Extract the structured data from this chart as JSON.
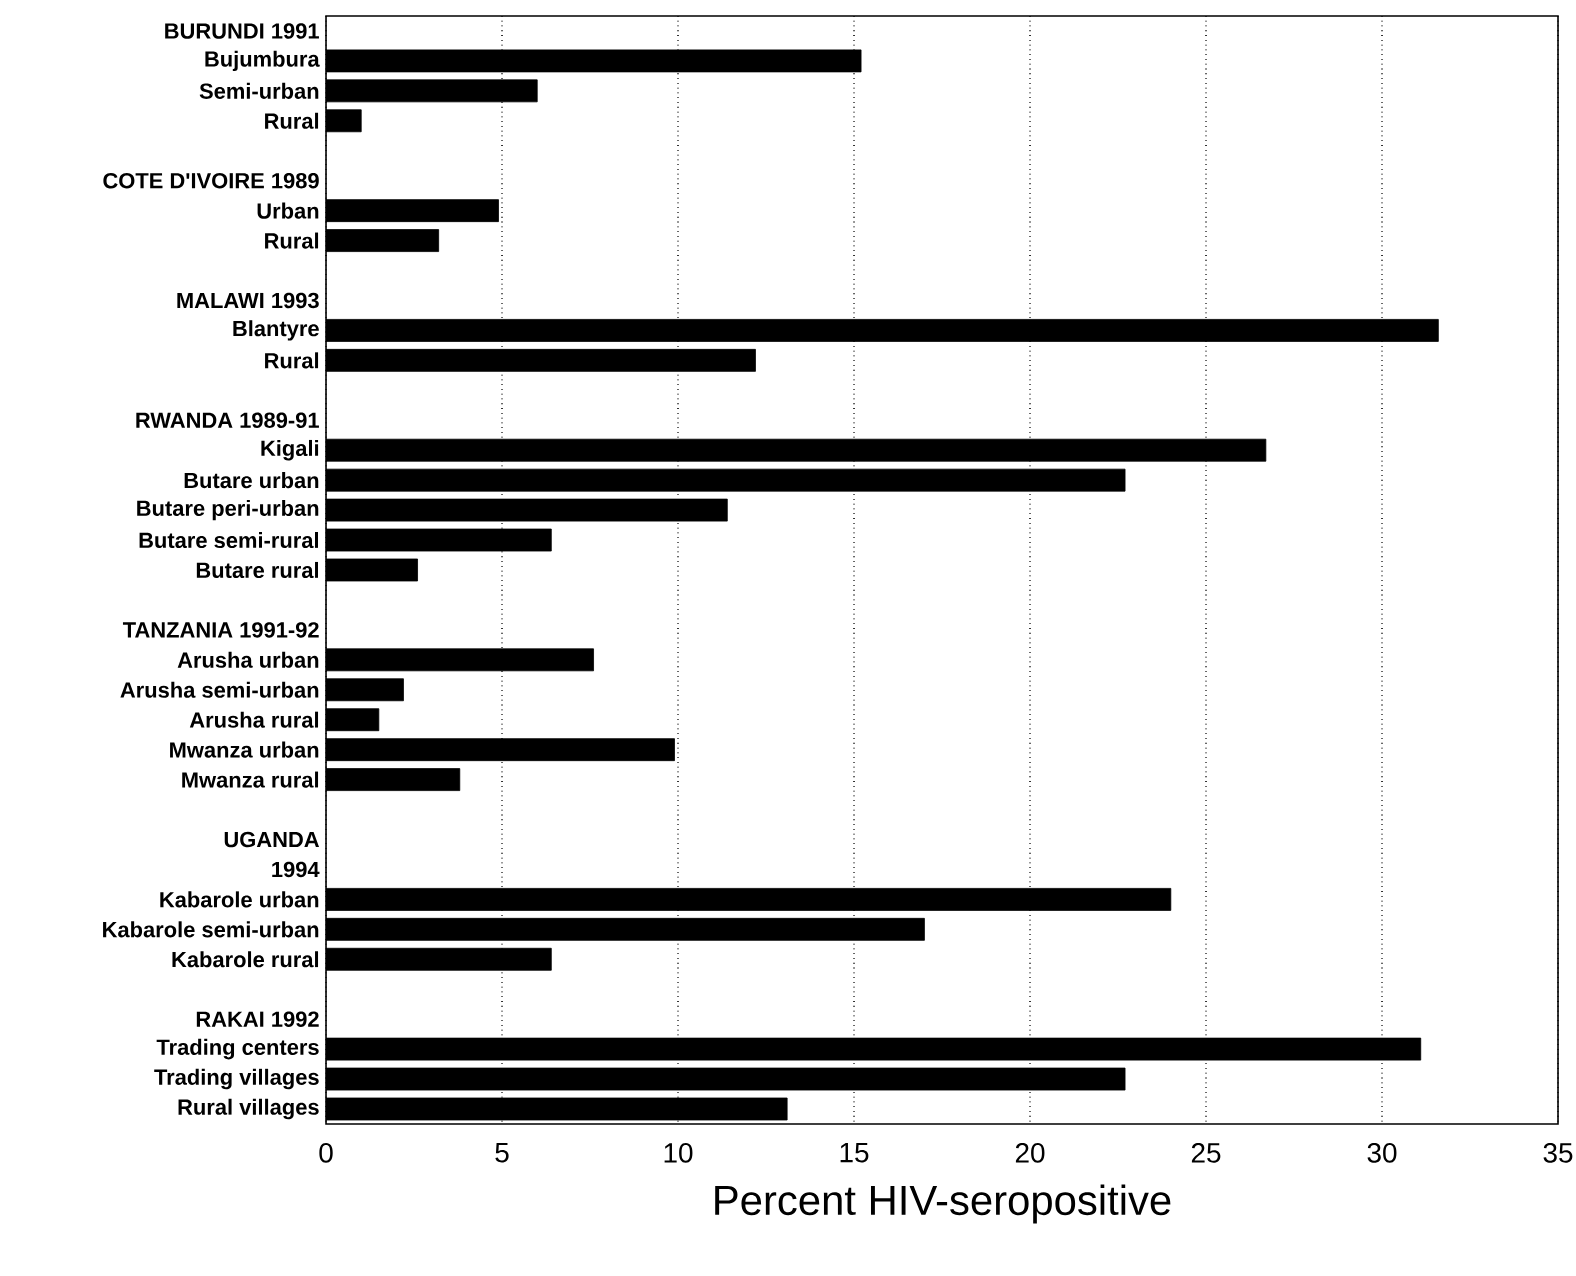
{
  "chart_data": {
    "type": "bar",
    "orientation": "horizontal",
    "xlabel": "Percent HIV-seropositive",
    "categories": [
      "BURUNDI 1991",
      "Bujumbura",
      "Semi-urban",
      "Rural",
      null,
      "COTE D'IVOIRE 1989",
      "Urban",
      "Rural",
      null,
      "MALAWI 1993",
      "Blantyre",
      "Rural",
      null,
      "RWANDA 1989-91",
      "Kigali",
      "Butare urban",
      "Butare peri-urban",
      "Butare semi-rural",
      "Butare rural",
      null,
      "TANZANIA 1991-92",
      "Arusha urban",
      "Arusha semi-urban",
      "Arusha rural",
      "Mwanza urban",
      "Mwanza rural",
      null,
      "UGANDA",
      "1994",
      "Kabarole urban",
      "Kabarole semi-urban",
      "Kabarole rural",
      null,
      "RAKAI 1992",
      "Trading centers",
      "Trading villages",
      "Rural villages"
    ],
    "values": [
      null,
      15.2,
      6.0,
      1.0,
      null,
      null,
      4.9,
      3.2,
      null,
      null,
      31.6,
      12.2,
      null,
      null,
      26.7,
      22.7,
      11.4,
      6.4,
      2.6,
      null,
      null,
      7.6,
      2.2,
      1.5,
      9.9,
      3.8,
      null,
      null,
      null,
      24.0,
      17.0,
      6.4,
      null,
      null,
      31.1,
      22.7,
      13.1
    ],
    "color": "#000000",
    "xlim": [
      0,
      35
    ],
    "xticks": [
      0,
      5,
      10,
      15,
      20,
      25,
      30,
      35
    ],
    "grid": "x"
  }
}
